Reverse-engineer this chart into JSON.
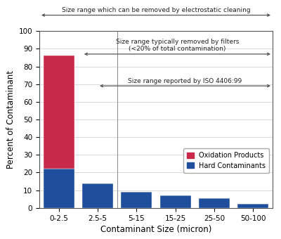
{
  "categories": [
    "0-2.5",
    "2.5-5",
    "5-15",
    "15-25",
    "25-50",
    "50-100"
  ],
  "blue_values": [
    22,
    14,
    9,
    7,
    5.5,
    2.5
  ],
  "red_values": [
    64,
    0,
    0,
    0,
    0,
    0
  ],
  "blue_color": "#1F4E9C",
  "red_color": "#C8294B",
  "bar_edge_color": "#333333",
  "xlabel": "Contaminant Size (micron)",
  "ylabel": "Percent of Contaminant",
  "ylim": [
    0,
    100
  ],
  "yticks": [
    0,
    10,
    20,
    30,
    40,
    50,
    60,
    70,
    80,
    90,
    100
  ],
  "legend_labels": [
    "Oxidation Products",
    "Hard Contaminants"
  ],
  "annotation1_text": "Size range which can be removed by electrostatic cleaning",
  "annotation2_text": "Size range typically removed by filters\n(<20% of total contamination)",
  "annotation3_text": "Size range reported by ISO 4406:99",
  "arrow_color": "#555555",
  "background_color": "#ffffff",
  "grid_color": "#cccccc"
}
